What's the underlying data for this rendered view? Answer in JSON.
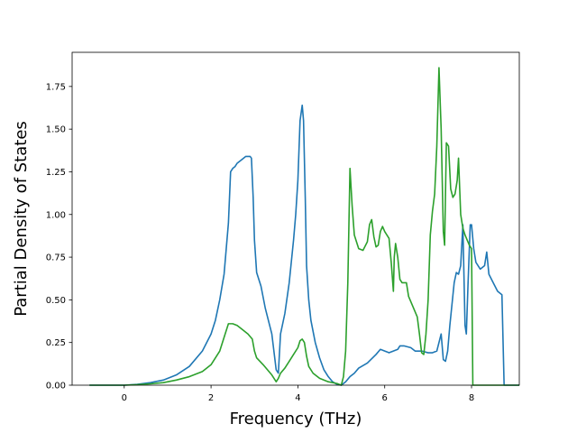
{
  "chart_data": {
    "type": "line",
    "title": "",
    "xlabel": "Frequency (THz)",
    "ylabel": "Partial Density of States",
    "xlim": [
      -1.2,
      9.1
    ],
    "ylim": [
      0.0,
      1.95
    ],
    "xticks": [
      0,
      2,
      4,
      6,
      8
    ],
    "yticks": [
      0.0,
      0.25,
      0.5,
      0.75,
      1.0,
      1.25,
      1.5,
      1.75
    ],
    "xtick_labels": [
      "0",
      "2",
      "4",
      "6",
      "8"
    ],
    "ytick_labels": [
      "0.00",
      "0.25",
      "0.50",
      "0.75",
      "1.00",
      "1.25",
      "1.50",
      "1.75"
    ],
    "grid": false,
    "legend": "none",
    "series": [
      {
        "color": "#1f77b4",
        "points": [
          [
            -0.8,
            0.0
          ],
          [
            0.0,
            0.0
          ],
          [
            0.3,
            0.005
          ],
          [
            0.6,
            0.015
          ],
          [
            0.9,
            0.03
          ],
          [
            1.2,
            0.06
          ],
          [
            1.5,
            0.11
          ],
          [
            1.8,
            0.2
          ],
          [
            2.0,
            0.3
          ],
          [
            2.1,
            0.38
          ],
          [
            2.2,
            0.5
          ],
          [
            2.3,
            0.65
          ],
          [
            2.35,
            0.8
          ],
          [
            2.4,
            0.95
          ],
          [
            2.45,
            1.25
          ],
          [
            2.5,
            1.27
          ],
          [
            2.55,
            1.28
          ],
          [
            2.6,
            1.3
          ],
          [
            2.7,
            1.32
          ],
          [
            2.8,
            1.34
          ],
          [
            2.9,
            1.34
          ],
          [
            2.93,
            1.33
          ],
          [
            2.97,
            1.1
          ],
          [
            3.0,
            0.85
          ],
          [
            3.05,
            0.66
          ],
          [
            3.15,
            0.58
          ],
          [
            3.25,
            0.45
          ],
          [
            3.4,
            0.3
          ],
          [
            3.5,
            0.09
          ],
          [
            3.55,
            0.07
          ],
          [
            3.6,
            0.3
          ],
          [
            3.7,
            0.42
          ],
          [
            3.8,
            0.6
          ],
          [
            3.9,
            0.85
          ],
          [
            3.95,
            1.0
          ],
          [
            4.0,
            1.2
          ],
          [
            4.05,
            1.55
          ],
          [
            4.1,
            1.64
          ],
          [
            4.13,
            1.55
          ],
          [
            4.17,
            1.1
          ],
          [
            4.2,
            0.7
          ],
          [
            4.25,
            0.5
          ],
          [
            4.3,
            0.38
          ],
          [
            4.4,
            0.25
          ],
          [
            4.5,
            0.16
          ],
          [
            4.6,
            0.09
          ],
          [
            4.7,
            0.05
          ],
          [
            4.8,
            0.02
          ],
          [
            4.9,
            0.005
          ],
          [
            5.0,
            0.0
          ],
          [
            5.1,
            0.02
          ],
          [
            5.2,
            0.05
          ],
          [
            5.3,
            0.07
          ],
          [
            5.4,
            0.1
          ],
          [
            5.6,
            0.13
          ],
          [
            5.8,
            0.18
          ],
          [
            5.9,
            0.21
          ],
          [
            6.0,
            0.2
          ],
          [
            6.1,
            0.19
          ],
          [
            6.2,
            0.2
          ],
          [
            6.3,
            0.21
          ],
          [
            6.35,
            0.23
          ],
          [
            6.45,
            0.23
          ],
          [
            6.6,
            0.22
          ],
          [
            6.7,
            0.2
          ],
          [
            6.85,
            0.2
          ],
          [
            7.0,
            0.19
          ],
          [
            7.1,
            0.19
          ],
          [
            7.2,
            0.2
          ],
          [
            7.3,
            0.3
          ],
          [
            7.35,
            0.15
          ],
          [
            7.4,
            0.14
          ],
          [
            7.45,
            0.2
          ],
          [
            7.5,
            0.35
          ],
          [
            7.6,
            0.6
          ],
          [
            7.65,
            0.66
          ],
          [
            7.7,
            0.65
          ],
          [
            7.75,
            0.7
          ],
          [
            7.8,
            0.94
          ],
          [
            7.85,
            0.35
          ],
          [
            7.88,
            0.3
          ],
          [
            7.92,
            0.6
          ],
          [
            7.97,
            0.94
          ],
          [
            8.0,
            0.94
          ],
          [
            8.05,
            0.8
          ],
          [
            8.1,
            0.72
          ],
          [
            8.2,
            0.68
          ],
          [
            8.3,
            0.7
          ],
          [
            8.35,
            0.78
          ],
          [
            8.4,
            0.65
          ],
          [
            8.5,
            0.6
          ],
          [
            8.6,
            0.55
          ],
          [
            8.7,
            0.53
          ],
          [
            8.75,
            0.0
          ],
          [
            9.5,
            0.0
          ]
        ]
      },
      {
        "color": "#2ca02c",
        "points": [
          [
            -0.8,
            0.0
          ],
          [
            0.0,
            0.0
          ],
          [
            0.3,
            0.003
          ],
          [
            0.6,
            0.008
          ],
          [
            0.9,
            0.015
          ],
          [
            1.2,
            0.03
          ],
          [
            1.5,
            0.05
          ],
          [
            1.8,
            0.08
          ],
          [
            2.0,
            0.12
          ],
          [
            2.2,
            0.2
          ],
          [
            2.3,
            0.28
          ],
          [
            2.4,
            0.36
          ],
          [
            2.5,
            0.36
          ],
          [
            2.6,
            0.35
          ],
          [
            2.7,
            0.33
          ],
          [
            2.85,
            0.3
          ],
          [
            2.95,
            0.27
          ],
          [
            3.0,
            0.2
          ],
          [
            3.05,
            0.16
          ],
          [
            3.2,
            0.12
          ],
          [
            3.4,
            0.06
          ],
          [
            3.5,
            0.02
          ],
          [
            3.55,
            0.04
          ],
          [
            3.6,
            0.07
          ],
          [
            3.7,
            0.1
          ],
          [
            3.8,
            0.14
          ],
          [
            3.9,
            0.18
          ],
          [
            4.0,
            0.22
          ],
          [
            4.05,
            0.26
          ],
          [
            4.1,
            0.27
          ],
          [
            4.15,
            0.25
          ],
          [
            4.2,
            0.17
          ],
          [
            4.25,
            0.11
          ],
          [
            4.35,
            0.07
          ],
          [
            4.5,
            0.04
          ],
          [
            4.7,
            0.02
          ],
          [
            4.9,
            0.01
          ],
          [
            5.0,
            0.0
          ],
          [
            5.05,
            0.05
          ],
          [
            5.1,
            0.2
          ],
          [
            5.15,
            0.6
          ],
          [
            5.2,
            1.27
          ],
          [
            5.25,
            1.05
          ],
          [
            5.3,
            0.88
          ],
          [
            5.4,
            0.8
          ],
          [
            5.5,
            0.79
          ],
          [
            5.6,
            0.84
          ],
          [
            5.65,
            0.94
          ],
          [
            5.7,
            0.97
          ],
          [
            5.75,
            0.87
          ],
          [
            5.8,
            0.81
          ],
          [
            5.85,
            0.82
          ],
          [
            5.9,
            0.9
          ],
          [
            5.95,
            0.93
          ],
          [
            6.0,
            0.9
          ],
          [
            6.1,
            0.86
          ],
          [
            6.15,
            0.72
          ],
          [
            6.2,
            0.55
          ],
          [
            6.22,
            0.75
          ],
          [
            6.25,
            0.83
          ],
          [
            6.3,
            0.75
          ],
          [
            6.35,
            0.62
          ],
          [
            6.4,
            0.6
          ],
          [
            6.5,
            0.6
          ],
          [
            6.55,
            0.52
          ],
          [
            6.65,
            0.46
          ],
          [
            6.75,
            0.4
          ],
          [
            6.8,
            0.3
          ],
          [
            6.85,
            0.19
          ],
          [
            6.9,
            0.18
          ],
          [
            6.95,
            0.3
          ],
          [
            7.0,
            0.5
          ],
          [
            7.05,
            0.88
          ],
          [
            7.1,
            1.02
          ],
          [
            7.15,
            1.12
          ],
          [
            7.2,
            1.4
          ],
          [
            7.25,
            1.86
          ],
          [
            7.3,
            1.5
          ],
          [
            7.35,
            0.9
          ],
          [
            7.38,
            0.82
          ],
          [
            7.42,
            1.42
          ],
          [
            7.47,
            1.4
          ],
          [
            7.52,
            1.15
          ],
          [
            7.57,
            1.1
          ],
          [
            7.62,
            1.12
          ],
          [
            7.67,
            1.2
          ],
          [
            7.7,
            1.33
          ],
          [
            7.75,
            1.0
          ],
          [
            7.8,
            0.92
          ],
          [
            7.85,
            0.88
          ],
          [
            7.9,
            0.85
          ],
          [
            7.95,
            0.82
          ],
          [
            8.0,
            0.8
          ],
          [
            8.03,
            0.0
          ],
          [
            9.5,
            0.0
          ]
        ]
      }
    ]
  }
}
